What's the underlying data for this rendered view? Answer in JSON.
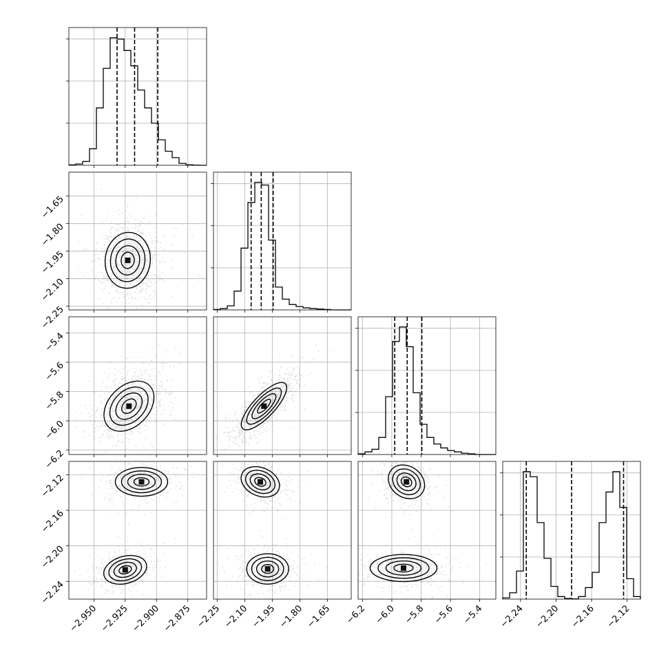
{
  "chart_data": {
    "type": "corner",
    "grid": true,
    "parameters": [
      {
        "range": [
          -2.97,
          -2.86
        ],
        "ticks": [
          -2.95,
          -2.925,
          -2.9,
          -2.875
        ],
        "tick_labels": [
          "−2.950",
          "−2.925",
          "−2.900",
          "−2.875"
        ],
        "quantiles": [
          -2.9315,
          -2.9175,
          -2.899
        ]
      },
      {
        "range": [
          -2.27,
          -1.52
        ],
        "ticks": [
          -2.25,
          -2.1,
          -1.95,
          -1.8,
          -1.65
        ],
        "tick_labels": [
          "−2.25",
          "−2.10",
          "−1.95",
          "−1.80",
          "−1.65"
        ],
        "quantiles": [
          -2.065,
          -2.01,
          -1.945
        ]
      },
      {
        "range": [
          -6.23,
          -5.29
        ],
        "ticks": [
          -6.2,
          -6.0,
          -5.8,
          -5.6,
          -5.4
        ],
        "tick_labels": [
          "−6.2",
          "−6.0",
          "−5.8",
          "−5.6",
          "−5.4"
        ],
        "quantiles": [
          -5.98,
          -5.895,
          -5.795
        ]
      },
      {
        "range": [
          -2.26,
          -2.105
        ],
        "ticks": [
          -2.24,
          -2.2,
          -2.16,
          -2.12
        ],
        "tick_labels": [
          "−2.24",
          "−2.20",
          "−2.16",
          "−2.12"
        ],
        "quantiles": [
          -2.2335,
          -2.1825,
          -2.124
        ]
      }
    ],
    "histograms": [
      {
        "bin_edges": [
          -2.97,
          -2.9645,
          -2.959,
          -2.9535,
          -2.948,
          -2.9425,
          -2.937,
          -2.9315,
          -2.926,
          -2.9205,
          -2.915,
          -2.9095,
          -2.904,
          -2.8985,
          -2.893,
          -2.8875,
          -2.882,
          -2.8765,
          -2.871,
          -2.8655,
          -2.86
        ],
        "counts": [
          0.3,
          1,
          3,
          13,
          45,
          76,
          100,
          99,
          90,
          78,
          59,
          45,
          33,
          20,
          11,
          6,
          1.5,
          0.4,
          0.1,
          0
        ]
      },
      {
        "bin_edges": [
          -2.27,
          -2.2325,
          -2.195,
          -2.1575,
          -2.12,
          -2.0825,
          -2.045,
          -2.0075,
          -1.97,
          -1.9325,
          -1.895,
          -1.8575,
          -1.82,
          -1.7825,
          -1.745,
          -1.7075,
          -1.67,
          -1.6325,
          -1.595,
          -1.5575,
          -1.52
        ],
        "counts": [
          0.3,
          1,
          3,
          14,
          46,
          80,
          95,
          93,
          52,
          17,
          8,
          4,
          2.5,
          1.5,
          1,
          0.6,
          0.3,
          0,
          0,
          0
        ]
      },
      {
        "bin_edges": [
          -6.23,
          -6.183,
          -6.136,
          -6.089,
          -6.042,
          -5.995,
          -5.948,
          -5.901,
          -5.854,
          -5.807,
          -5.76,
          -5.713,
          -5.666,
          -5.619,
          -5.572,
          -5.525,
          -5.478,
          -5.431,
          -5.384,
          -5.337,
          -5.29
        ],
        "counts": [
          0.5,
          2,
          4,
          13,
          44,
          86,
          97,
          82,
          47,
          23,
          13,
          8,
          5,
          3,
          2,
          1,
          0.5,
          0,
          0,
          0
        ],
        "note": ""
      },
      {
        "bin_edges": [
          -2.26,
          -2.25225,
          -2.2445,
          -2.23675,
          -2.229,
          -2.22125,
          -2.2135,
          -2.20575,
          -2.198,
          -2.19025,
          -2.1825,
          -2.17475,
          -2.167,
          -2.15925,
          -2.1515,
          -2.14375,
          -2.136,
          -2.12825,
          -2.1205,
          -2.11275,
          -2.105
        ],
        "counts": [
          1,
          5,
          22,
          100,
          96,
          60,
          32,
          10,
          2,
          0.5,
          0.2,
          2,
          9,
          21,
          60,
          84,
          100,
          72,
          16,
          2
        ]
      }
    ],
    "pairs": [
      {
        "x": 0,
        "y": 1,
        "modes": [
          {
            "cx": -2.923,
            "cy": -2.0,
            "sx": 0.0095,
            "sy": 0.08,
            "rho": 0.05
          }
        ],
        "contour_levels": 4
      },
      {
        "x": 0,
        "y": 2,
        "modes": [
          {
            "cx": -2.922,
            "cy": -5.9,
            "sx": 0.0105,
            "sy": 0.09,
            "rho": 0.35
          }
        ],
        "contour_levels": 4
      },
      {
        "x": 1,
        "y": 2,
        "modes": [
          {
            "cx": -1.995,
            "cy": -5.9,
            "sx": 0.065,
            "sy": 0.085,
            "rho": 0.78
          }
        ],
        "contour_levels": 4
      },
      {
        "x": 0,
        "y": 3,
        "modes": [
          {
            "cx": -2.912,
            "cy": -2.128,
            "sx": 0.011,
            "sy": 0.0085,
            "rho": 0.0
          },
          {
            "cx": -2.925,
            "cy": -2.227,
            "sx": 0.009,
            "sy": 0.0085,
            "rho": 0.25
          }
        ],
        "contour_levels": 4
      },
      {
        "x": 1,
        "y": 3,
        "modes": [
          {
            "cx": -2.015,
            "cy": -2.128,
            "sx": 0.055,
            "sy": 0.009,
            "rho": -0.25
          },
          {
            "cx": -1.975,
            "cy": -2.226,
            "sx": 0.06,
            "sy": 0.009,
            "rho": 0.0
          }
        ],
        "contour_levels": 4
      },
      {
        "x": 2,
        "y": 3,
        "modes": [
          {
            "cx": -5.9,
            "cy": -2.128,
            "sx": 0.065,
            "sy": 0.01,
            "rho": -0.2
          },
          {
            "cx": -5.92,
            "cy": -2.225,
            "sx": 0.12,
            "sy": 0.008,
            "rho": 0.0
          }
        ],
        "contour_levels": 4
      }
    ]
  }
}
